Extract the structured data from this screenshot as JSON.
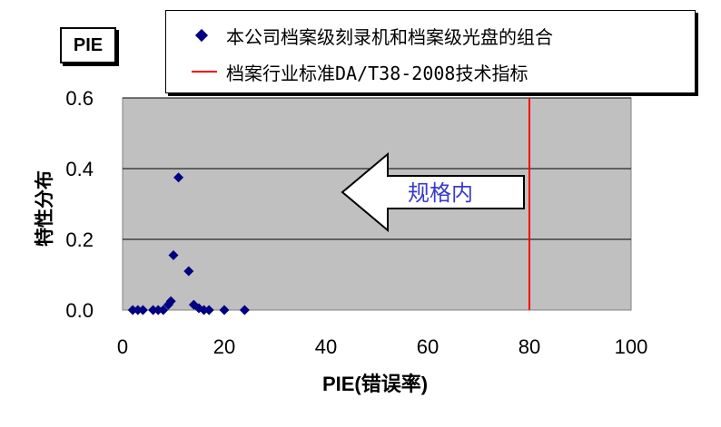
{
  "chart_data": {
    "type": "scatter",
    "title": "PIE",
    "xlabel": "PIE(错误率)",
    "ylabel": "特性分布",
    "xlim": [
      0,
      100
    ],
    "ylim": [
      0,
      0.6
    ],
    "x_ticks": [
      "0",
      "20",
      "40",
      "60",
      "80",
      "100"
    ],
    "y_ticks": [
      "0.0",
      "0.2",
      "0.4",
      "0.6"
    ],
    "grid": true,
    "legend_position": "top-right",
    "series": [
      {
        "name": "本公司档案级刻录机和档案级光盘的组合",
        "marker": "diamond",
        "color": "#000080",
        "x": [
          2,
          3,
          4,
          6,
          7,
          8,
          9,
          9.5,
          10,
          11,
          13,
          14,
          15,
          16,
          17,
          20,
          24
        ],
        "y": [
          0.0,
          0.0,
          0.0,
          0.0,
          0.0,
          0.0,
          0.015,
          0.025,
          0.155,
          0.375,
          0.11,
          0.015,
          0.005,
          0.0,
          0.0,
          0.0,
          0.0
        ]
      },
      {
        "name": "档案行业标准DA/T38-2008技术指标",
        "type": "vline",
        "color": "#ff0000",
        "x": 80
      }
    ],
    "annotation": {
      "text": "规格内",
      "arrow_direction": "left"
    }
  },
  "colors": {
    "plot_background": "#c0c0c0",
    "grid": "#000000",
    "marker": "#000080",
    "standard_line": "#ff0000",
    "annotation_text": "#3a3acd"
  }
}
